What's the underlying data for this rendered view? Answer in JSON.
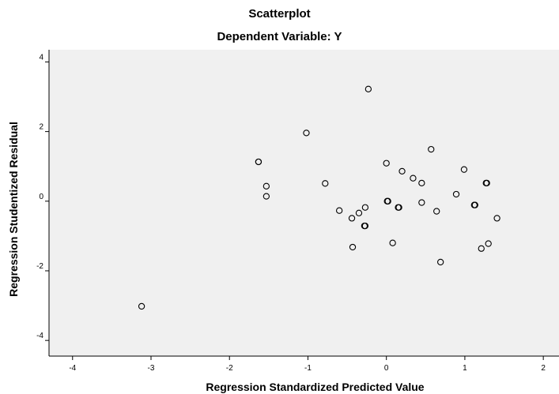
{
  "chart_data": {
    "type": "scatter",
    "title": "Scatterplot",
    "subtitle": "Dependent Variable: Y",
    "xlabel": "Regression Standardized Predicted Value",
    "ylabel": "Regression Studentized Residual",
    "xlim": [
      -4.3,
      2.2
    ],
    "ylim": [
      -4.45,
      4.35
    ],
    "xticks": [
      -4,
      -3,
      -2,
      -1,
      0,
      1,
      2
    ],
    "yticks": [
      -4,
      -2,
      0,
      2,
      4
    ],
    "xtick_labels": [
      "-4",
      "-3",
      "-2",
      "-1",
      "0",
      "1",
      "2"
    ],
    "ytick_labels": [
      "-4",
      "-2",
      "0",
      "2",
      "4"
    ],
    "grid": false,
    "plot_background": "#f0f0f0",
    "marker_color": "#000000",
    "points": [
      {
        "x": -3.12,
        "y": -3.02
      },
      {
        "x": -1.63,
        "y": 1.13
      },
      {
        "x": -1.63,
        "y": 1.13
      },
      {
        "x": -1.53,
        "y": 0.43
      },
      {
        "x": -1.53,
        "y": 0.14
      },
      {
        "x": -1.02,
        "y": 1.96
      },
      {
        "x": -0.78,
        "y": 0.51
      },
      {
        "x": -0.6,
        "y": -0.27
      },
      {
        "x": -0.44,
        "y": -0.49
      },
      {
        "x": -0.43,
        "y": -1.32
      },
      {
        "x": -0.35,
        "y": -0.34
      },
      {
        "x": -0.28,
        "y": -0.71
      },
      {
        "x": -0.27,
        "y": -0.71
      },
      {
        "x": -0.27,
        "y": -0.18
      },
      {
        "x": -0.23,
        "y": 3.22
      },
      {
        "x": 0.0,
        "y": 1.09
      },
      {
        "x": 0.01,
        "y": 0.0
      },
      {
        "x": 0.02,
        "y": 0.0
      },
      {
        "x": 0.08,
        "y": -1.2
      },
      {
        "x": 0.15,
        "y": -0.18
      },
      {
        "x": 0.16,
        "y": -0.18
      },
      {
        "x": 0.2,
        "y": 0.86
      },
      {
        "x": 0.34,
        "y": 0.66
      },
      {
        "x": 0.45,
        "y": 0.52
      },
      {
        "x": 0.45,
        "y": -0.04
      },
      {
        "x": 0.57,
        "y": 1.49
      },
      {
        "x": 0.64,
        "y": -0.29
      },
      {
        "x": 0.69,
        "y": -1.75
      },
      {
        "x": 0.89,
        "y": 0.2
      },
      {
        "x": 0.99,
        "y": 0.91
      },
      {
        "x": 1.12,
        "y": -0.11
      },
      {
        "x": 1.13,
        "y": -0.11
      },
      {
        "x": 1.21,
        "y": -1.36
      },
      {
        "x": 1.27,
        "y": 0.52
      },
      {
        "x": 1.28,
        "y": 0.52
      },
      {
        "x": 1.3,
        "y": -1.22
      },
      {
        "x": 1.41,
        "y": -0.49
      }
    ]
  }
}
